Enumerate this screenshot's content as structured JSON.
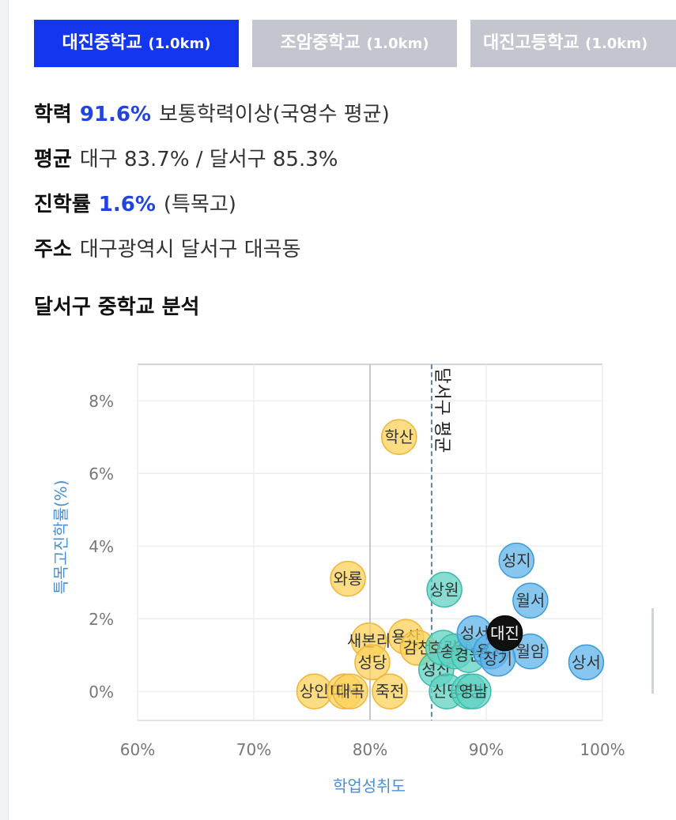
{
  "tabs": [
    {
      "name": "대진중학교",
      "dist": "(1.0km)",
      "active": true
    },
    {
      "name": "조암중학교",
      "dist": "(1.0km)",
      "active": false
    },
    {
      "name": "대진고등학교",
      "dist": "(1.0km)",
      "active": false
    }
  ],
  "info": {
    "achievement": {
      "label": "학력",
      "value": "91.6%",
      "desc": "보통학력이상(국영수 평균)"
    },
    "average": {
      "label": "평균",
      "desc": "대구 83.7% / 달서구 85.3%"
    },
    "advancement": {
      "label": "진학률",
      "value": "1.6%",
      "desc": "(특목고)"
    },
    "address": {
      "label": "주소",
      "desc": "대구광역시 달서구 대곡동"
    }
  },
  "section_title": "달서구 중학교 분석",
  "colors": {
    "yellow": "#fcd15a",
    "teal": "#5fd1c2",
    "blue": "#5fb3ea",
    "highlight": "#111111",
    "tab_active": "#1336ee",
    "tab_inactive": "#c3c6cf",
    "axis_label": "#4a8fd6"
  },
  "chart_data": {
    "type": "scatter",
    "xlabel": "학업성취도",
    "ylabel": "특목고진학률(%)",
    "xlim": [
      60,
      100
    ],
    "ylim": [
      -0.8,
      9.2
    ],
    "xticks": [
      "60%",
      "70%",
      "80%",
      "90%",
      "100%"
    ],
    "yticks": [
      "0%",
      "2%",
      "4%",
      "6%",
      "8%"
    ],
    "reference_line": {
      "x": 85.3,
      "label": "달서구 평균"
    },
    "grid": true,
    "points": [
      {
        "label": "학산",
        "x": 82.5,
        "y": 7.0,
        "group": "yellow"
      },
      {
        "label": "와룡",
        "x": 78.1,
        "y": 3.1,
        "group": "yellow"
      },
      {
        "label": "용산",
        "x": 83.1,
        "y": 1.5,
        "group": "yellow"
      },
      {
        "label": "새본리",
        "x": 79.9,
        "y": 1.4,
        "group": "yellow"
      },
      {
        "label": "성당",
        "x": 80.2,
        "y": 0.8,
        "group": "yellow"
      },
      {
        "label": "상인",
        "x": 75.2,
        "y": 0.0,
        "group": "yellow"
      },
      {
        "label": "대서",
        "x": 77.8,
        "y": 0.0,
        "group": "yellow"
      },
      {
        "label": "대곡",
        "x": 78.3,
        "y": 0.0,
        "group": "yellow"
      },
      {
        "label": "죽전",
        "x": 81.7,
        "y": 0.0,
        "group": "yellow"
      },
      {
        "label": "감천",
        "x": 84.1,
        "y": 1.2,
        "group": "yellow"
      },
      {
        "label": "상원",
        "x": 86.4,
        "y": 2.8,
        "group": "teal"
      },
      {
        "label": "성산",
        "x": 85.7,
        "y": 0.6,
        "group": "teal"
      },
      {
        "label": "신당",
        "x": 86.6,
        "y": 0.0,
        "group": "teal"
      },
      {
        "label": "대명",
        "x": 88.5,
        "y": 0.0,
        "group": "teal"
      },
      {
        "label": "영남",
        "x": 88.9,
        "y": 0.0,
        "group": "teal"
      },
      {
        "label": "호림",
        "x": 86.3,
        "y": 1.2,
        "group": "teal"
      },
      {
        "label": "송현",
        "x": 87.3,
        "y": 1.1,
        "group": "teal"
      },
      {
        "label": "경원",
        "x": 88.5,
        "y": 1.0,
        "group": "teal"
      },
      {
        "label": "성지",
        "x": 92.6,
        "y": 3.6,
        "group": "blue"
      },
      {
        "label": "월서",
        "x": 93.8,
        "y": 2.5,
        "group": "blue"
      },
      {
        "label": "상서",
        "x": 98.6,
        "y": 0.8,
        "group": "blue"
      },
      {
        "label": "월암",
        "x": 93.8,
        "y": 1.1,
        "group": "blue"
      },
      {
        "label": "성서",
        "x": 89.0,
        "y": 1.6,
        "group": "blue"
      },
      {
        "label": "용지",
        "x": 90.4,
        "y": 1.1,
        "group": "blue"
      },
      {
        "label": "장기",
        "x": 91.0,
        "y": 0.9,
        "group": "blue"
      },
      {
        "label": "대진",
        "x": 91.6,
        "y": 1.6,
        "group": "highlight"
      }
    ]
  }
}
